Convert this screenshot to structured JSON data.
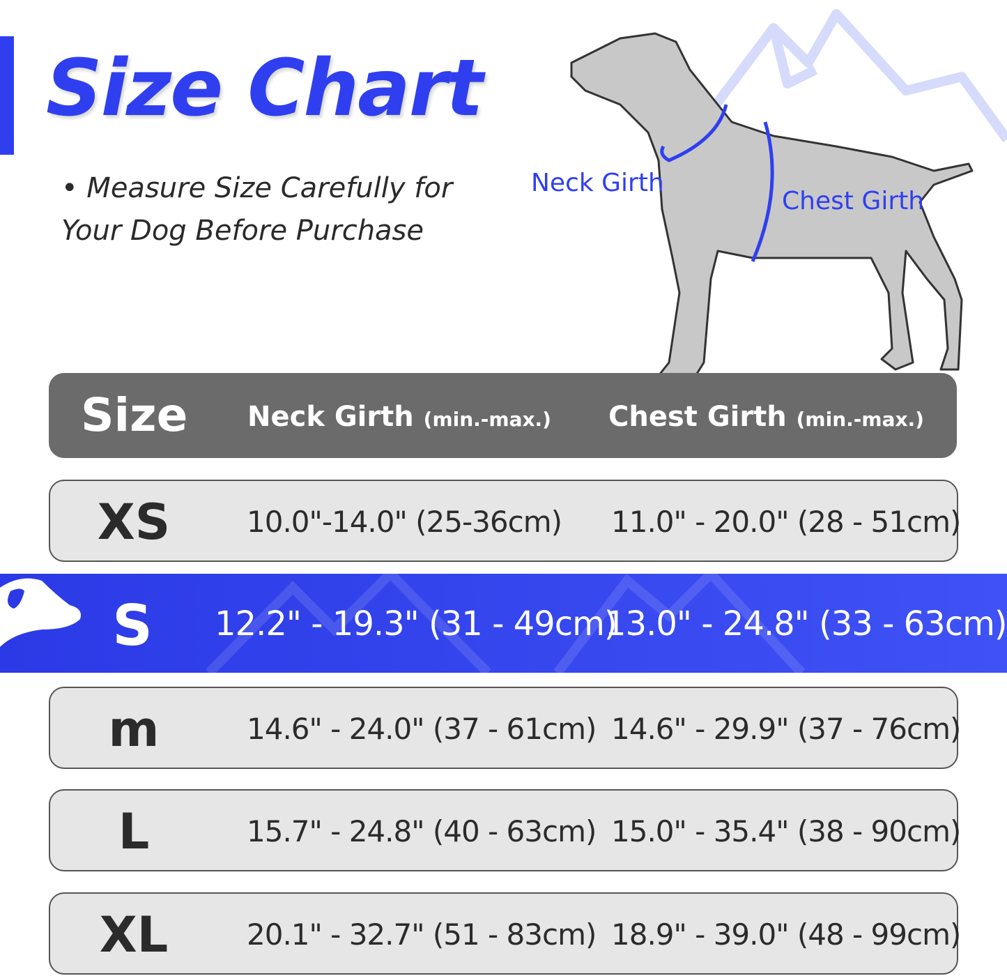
{
  "title": "Size Chart",
  "subtitle": "• Measure Size Carefully for Your Dog Before Purchase",
  "diagram": {
    "neck_label": "Neck Girth",
    "chest_label": "Chest Girth"
  },
  "colors": {
    "accent": "#2f3ff0",
    "header_bg": "#6b6b6b",
    "row_bg": "#e6e6e6"
  },
  "header": {
    "size": "Size",
    "neck": "Neck Girth",
    "neck_unit": "(min.-max.)",
    "chest": "Chest Girth",
    "chest_unit": "(min.-max.)"
  },
  "rows": [
    {
      "size": "XS",
      "neck": "10.0\"-14.0\" (25-36cm)",
      "chest": "11.0\" - 20.0\" (28 - 51cm)"
    },
    {
      "size": "S",
      "neck": "12.2\" - 19.3\" (31 - 49cm)",
      "chest": "13.0\" - 24.8\" (33 - 63cm)",
      "highlighted": true
    },
    {
      "size": "m",
      "neck": "14.6\" - 24.0\" (37 - 61cm)",
      "chest": "14.6\" - 29.9\" (37 - 76cm)"
    },
    {
      "size": "L",
      "neck": "15.7\" - 24.8\" (40 - 63cm)",
      "chest": "15.0\" - 35.4\" (38 - 90cm)"
    },
    {
      "size": "XL",
      "neck": "20.1\" - 32.7\" (51 - 83cm)",
      "chest": "18.9\" - 39.0\" (48 - 99cm)"
    }
  ]
}
